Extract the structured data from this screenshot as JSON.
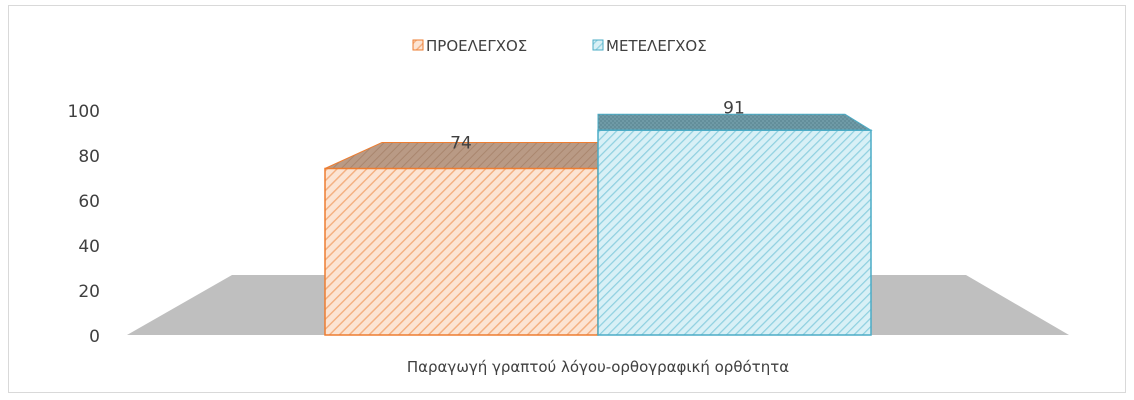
{
  "chart_data": {
    "type": "bar",
    "style": "3d-clustered",
    "categories": [
      "Παραγωγή γραπτού λόγου-ορθογραφική ορθότητα"
    ],
    "series": [
      {
        "name": "ΠΡΟΕΛΕΓΧΟΣ",
        "values": [
          74
        ],
        "color": "#f4b183",
        "edge_color": "#ed7d31"
      },
      {
        "name": "ΜΕΤΕΛΕΓΧΟΣ",
        "values": [
          91
        ],
        "color": "#9dd8e6",
        "edge_color": "#4bacc6"
      }
    ],
    "data_labels": [
      "74",
      "91"
    ],
    "ylim": [
      0,
      100
    ],
    "y_ticks": [
      "0",
      "20",
      "40",
      "60",
      "80",
      "100"
    ],
    "legend_position": "top",
    "grid": false,
    "floor_color": "#bfbfbf",
    "tick_color": "#404040"
  }
}
